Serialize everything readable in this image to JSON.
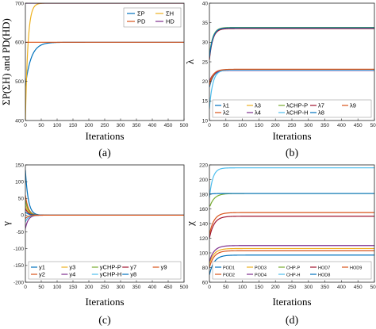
{
  "colors": {
    "blue": "#0072bd",
    "orange": "#d95319",
    "yellow": "#edb120",
    "purple": "#7e2f8e",
    "green": "#77ac30",
    "cyan": "#4dbeee",
    "darkred": "#a2142f",
    "frame": "#222222"
  },
  "chart_data": [
    {
      "id": "a",
      "type": "line",
      "caption": "(a)",
      "xlabel": "Iterations",
      "ylabel": "ΣP(ΣH) and PD(HD)",
      "xlim": [
        0,
        500
      ],
      "ylim": [
        400,
        700
      ],
      "xticks": [
        "0",
        "50",
        "100",
        "150",
        "200",
        "250",
        "300",
        "350",
        "400",
        "450",
        "500"
      ],
      "yticks": [
        "400",
        "500",
        "600",
        "700"
      ],
      "legend": {
        "position": "top-right",
        "columns": 2
      },
      "series": [
        {
          "name": "ΣP",
          "color": "blue",
          "start": 488,
          "end": 600,
          "tau": 18,
          "mode": "exp"
        },
        {
          "name": "ΣH",
          "color": "yellow",
          "start": 400,
          "end": 700,
          "tau": 8,
          "mode": "exp"
        },
        {
          "name": "PD",
          "color": "orange",
          "start": 600,
          "end": 600,
          "tau": 1,
          "mode": "exp"
        },
        {
          "name": "HD",
          "color": "purple",
          "start": 700,
          "end": 700,
          "tau": 1,
          "mode": "exp"
        }
      ]
    },
    {
      "id": "b",
      "type": "line",
      "caption": "(b)",
      "xlabel": "Iterations",
      "ylabel": "λ",
      "xlim": [
        0,
        500
      ],
      "ylim": [
        10,
        40
      ],
      "xticks": [
        "0",
        "50",
        "100",
        "150",
        "200",
        "250",
        "300",
        "350",
        "400",
        "450",
        "500"
      ],
      "yticks": [
        "10",
        "15",
        "20",
        "25",
        "30",
        "35",
        "40"
      ],
      "legend": {
        "position": "bottom",
        "columns": 5
      },
      "series": [
        {
          "name": "λ1",
          "color": "blue",
          "start": 18.5,
          "end": 22.9,
          "tau": 12,
          "mode": "exp"
        },
        {
          "name": "λ2",
          "color": "orange",
          "start": 19.0,
          "end": 23.0,
          "tau": 12,
          "mode": "exp"
        },
        {
          "name": "λ3",
          "color": "yellow",
          "start": 25.8,
          "end": 33.6,
          "tau": 10,
          "mode": "exp"
        },
        {
          "name": "λ4",
          "color": "purple",
          "start": 20.0,
          "end": 22.8,
          "tau": 12,
          "mode": "exp"
        },
        {
          "name": "λCHP-P",
          "color": "green",
          "start": 26.5,
          "end": 33.8,
          "tau": 10,
          "mode": "exp"
        },
        {
          "name": "λCHP-H",
          "color": "cyan",
          "start": 13.0,
          "end": 22.9,
          "tau": 10,
          "mode": "exp"
        },
        {
          "name": "λ7",
          "color": "darkred",
          "start": 25.5,
          "end": 33.5,
          "tau": 10,
          "mode": "exp"
        },
        {
          "name": "λ8",
          "color": "blue",
          "start": 26.0,
          "end": 33.7,
          "tau": 10,
          "mode": "exp"
        },
        {
          "name": "λ9",
          "color": "orange",
          "start": 19.5,
          "end": 23.1,
          "tau": 12,
          "mode": "exp"
        }
      ]
    },
    {
      "id": "c",
      "type": "line",
      "caption": "(c)",
      "xlabel": "Iterations",
      "ylabel": "γ",
      "xlim": [
        0,
        500
      ],
      "ylim": [
        -200,
        150
      ],
      "xticks": [
        "0",
        "50",
        "100",
        "150",
        "200",
        "250",
        "300",
        "350",
        "400",
        "450",
        "500"
      ],
      "yticks": [
        "-200",
        "-150",
        "-100",
        "-50",
        "0",
        "50",
        "100",
        "150"
      ],
      "legend": {
        "position": "bottom",
        "columns": 5
      },
      "series": [
        {
          "name": "y1",
          "color": "blue",
          "start": 135,
          "end": 0,
          "tau": 9,
          "mode": "exp"
        },
        {
          "name": "y2",
          "color": "orange",
          "start": 60,
          "end": 0,
          "tau": 9,
          "mode": "exp"
        },
        {
          "name": "y3",
          "color": "yellow",
          "start": 30,
          "end": 0,
          "tau": 9,
          "mode": "exp"
        },
        {
          "name": "y4",
          "color": "purple",
          "start": -40,
          "end": 0,
          "tau": 9,
          "mode": "exp"
        },
        {
          "name": "yCHP-P",
          "color": "green",
          "start": 45,
          "end": 0,
          "tau": 9,
          "mode": "exp"
        },
        {
          "name": "yCHP-H",
          "color": "cyan",
          "start": -20,
          "end": 0,
          "tau": 9,
          "mode": "exp"
        },
        {
          "name": "y7",
          "color": "darkred",
          "start": 20,
          "end": 0,
          "tau": 9,
          "mode": "exp"
        },
        {
          "name": "y8",
          "color": "blue",
          "start": 10,
          "end": 0,
          "tau": 9,
          "mode": "exp"
        },
        {
          "name": "y9",
          "color": "orange",
          "start": -10,
          "end": 0,
          "tau": 9,
          "mode": "exp"
        }
      ]
    },
    {
      "id": "d",
      "type": "line",
      "caption": "(d)",
      "xlabel": "Iterations",
      "ylabel": "χ",
      "xlim": [
        0,
        500
      ],
      "ylim": [
        60,
        220
      ],
      "xticks": [
        "0",
        "50",
        "100",
        "150",
        "200",
        "250",
        "300",
        "350",
        "400",
        "450",
        "500"
      ],
      "yticks": [
        "60",
        "80",
        "100",
        "120",
        "140",
        "160",
        "180",
        "200",
        "220"
      ],
      "legend": {
        "position": "bottom",
        "columns": 5
      },
      "series": [
        {
          "name": "POD1",
          "color": "blue",
          "start": 70,
          "end": 97,
          "tau": 14,
          "mode": "exp"
        },
        {
          "name": "POD2",
          "color": "orange",
          "start": 80,
          "end": 103,
          "tau": 14,
          "mode": "exp"
        },
        {
          "name": "POD3",
          "color": "yellow",
          "start": 85,
          "end": 106,
          "tau": 14,
          "mode": "exp"
        },
        {
          "name": "POD4",
          "color": "purple",
          "start": 88,
          "end": 110,
          "tau": 14,
          "mode": "exp"
        },
        {
          "name": "CHP-P",
          "color": "green",
          "start": 165,
          "end": 181,
          "tau": 14,
          "mode": "dip",
          "dip": 164
        },
        {
          "name": "CHP-H",
          "color": "cyan",
          "start": 175,
          "end": 216,
          "tau": 10,
          "mode": "exp"
        },
        {
          "name": "HOD7",
          "color": "darkred",
          "start": 120,
          "end": 150,
          "tau": 14,
          "mode": "exp"
        },
        {
          "name": "HOD8",
          "color": "blue",
          "start": 180,
          "end": 181,
          "tau": 10,
          "mode": "exp"
        },
        {
          "name": "HOD9",
          "color": "orange",
          "start": 125,
          "end": 155,
          "tau": 14,
          "mode": "exp"
        }
      ]
    }
  ]
}
